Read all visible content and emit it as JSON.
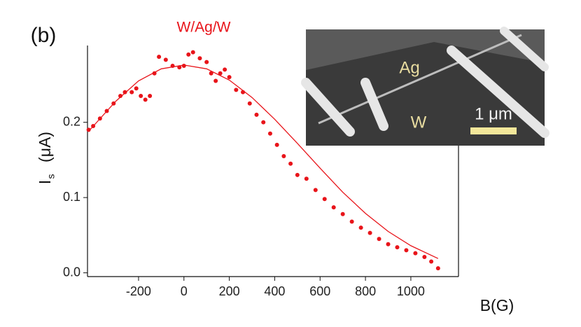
{
  "chart_data": {
    "type": "scatter",
    "panel_label": "(b)",
    "title": "W/Ag/W",
    "ylabel": "I",
    "ylabel_sub": "s",
    "ylabel_unit": "(μA)",
    "xlabel": "B(G)",
    "xlim": [
      -425,
      1210
    ],
    "ylim": [
      -0.005,
      0.302
    ],
    "xticks": [
      -200,
      0,
      200,
      400,
      600,
      800,
      1000
    ],
    "yticks": [
      {
        "value": 0,
        "label": "0.0"
      },
      0.1,
      0.2
    ],
    "series": [
      {
        "kind": "points",
        "color": "#e8141a",
        "x": [
          -420,
          -400,
          -370,
          -340,
          -310,
          -280,
          -260,
          -230,
          -210,
          -190,
          -170,
          -150,
          -130,
          -110,
          -80,
          -50,
          -20,
          0,
          20,
          40,
          70,
          100,
          120,
          140,
          160,
          180,
          200,
          230,
          260,
          290,
          320,
          350,
          380,
          410,
          440,
          470,
          500,
          540,
          580,
          620,
          660,
          700,
          740,
          780,
          820,
          860,
          900,
          940,
          980,
          1020,
          1060,
          1090,
          1120
        ],
        "values": [
          0.19,
          0.195,
          0.205,
          0.215,
          0.225,
          0.235,
          0.24,
          0.24,
          0.245,
          0.235,
          0.23,
          0.235,
          0.265,
          0.287,
          0.283,
          0.275,
          0.273,
          0.275,
          0.29,
          0.293,
          0.285,
          0.28,
          0.265,
          0.255,
          0.265,
          0.27,
          0.26,
          0.243,
          0.24,
          0.225,
          0.21,
          0.2,
          0.185,
          0.17,
          0.155,
          0.145,
          0.13,
          0.125,
          0.11,
          0.098,
          0.087,
          0.078,
          0.068,
          0.06,
          0.053,
          0.045,
          0.038,
          0.034,
          0.03,
          0.026,
          0.021,
          0.015,
          0.006
        ]
      },
      {
        "kind": "line",
        "color": "#e8141a",
        "x": [
          -420,
          -300,
          -200,
          -100,
          0,
          100,
          200,
          300,
          400,
          500,
          600,
          700,
          800,
          900,
          1000,
          1120
        ],
        "values": [
          0.188,
          0.228,
          0.255,
          0.271,
          0.276,
          0.271,
          0.256,
          0.233,
          0.204,
          0.172,
          0.139,
          0.107,
          0.079,
          0.055,
          0.036,
          0.019
        ]
      }
    ],
    "inset": {
      "label_ag": "Ag",
      "label_w": "W",
      "scale_label": "1 μm"
    }
  }
}
